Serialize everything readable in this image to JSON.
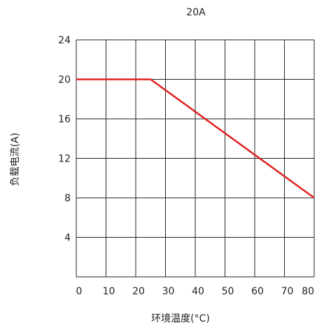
{
  "chart_data": {
    "type": "line",
    "title": "20A",
    "xlabel": "环境温度(°C)",
    "ylabel": "负载电流(A)",
    "xlim": [
      0,
      80
    ],
    "ylim": [
      0,
      24
    ],
    "x_ticks": [
      0,
      10,
      20,
      30,
      40,
      50,
      60,
      70,
      80
    ],
    "y_ticks": [
      4,
      8,
      12,
      16,
      20,
      24
    ],
    "grid": true,
    "series": [
      {
        "x": [
          0,
          25,
          80
        ],
        "y": [
          20,
          20,
          8
        ],
        "color": "#e02020"
      }
    ],
    "colors": {
      "line": "#e02020",
      "grid": "#222222",
      "text": "#222222"
    }
  }
}
